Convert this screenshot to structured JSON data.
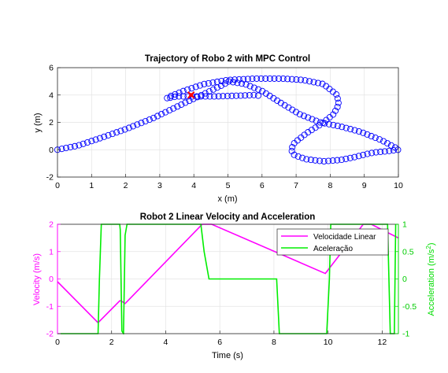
{
  "chart_data": [
    {
      "type": "scatter",
      "title": "Trajectory of Robo 2 with MPC Control",
      "xlabel": "x (m)",
      "ylabel": "y (m)",
      "xlim": [
        0,
        10
      ],
      "ylim": [
        -2,
        6
      ],
      "xticks": [
        0,
        1,
        2,
        3,
        4,
        5,
        6,
        7,
        8,
        9,
        10
      ],
      "yticks": [
        -2,
        0,
        2,
        4,
        6
      ],
      "grid": true,
      "marker": "circle",
      "series_color": "#0000ff",
      "current_marker_color": "#ff0000",
      "current_position": {
        "x": 3.92,
        "y": 4.0
      },
      "trajectory": [
        {
          "x": 0.0,
          "y": 0.0
        },
        {
          "x": 0.6,
          "y": 0.3
        },
        {
          "x": 1.2,
          "y": 0.8
        },
        {
          "x": 2.0,
          "y": 1.5
        },
        {
          "x": 2.8,
          "y": 2.3
        },
        {
          "x": 3.3,
          "y": 2.9
        },
        {
          "x": 3.8,
          "y": 3.5
        },
        {
          "x": 4.4,
          "y": 4.2
        },
        {
          "x": 4.9,
          "y": 4.8
        },
        {
          "x": 5.0,
          "y": 5.0
        },
        {
          "x": 5.5,
          "y": 4.8
        },
        {
          "x": 6.0,
          "y": 4.3
        },
        {
          "x": 6.5,
          "y": 3.5
        },
        {
          "x": 7.1,
          "y": 2.6
        },
        {
          "x": 7.7,
          "y": 2.0
        },
        {
          "x": 8.3,
          "y": 1.7
        },
        {
          "x": 8.9,
          "y": 1.3
        },
        {
          "x": 9.5,
          "y": 0.7
        },
        {
          "x": 9.95,
          "y": 0.1
        },
        {
          "x": 10.0,
          "y": 0.0
        },
        {
          "x": 9.7,
          "y": -0.1
        },
        {
          "x": 9.3,
          "y": -0.2
        },
        {
          "x": 9.1,
          "y": -0.3
        },
        {
          "x": 8.7,
          "y": -0.55
        },
        {
          "x": 8.3,
          "y": -0.75
        },
        {
          "x": 7.8,
          "y": -0.85
        },
        {
          "x": 7.3,
          "y": -0.7
        },
        {
          "x": 6.95,
          "y": -0.4
        },
        {
          "x": 6.85,
          "y": 0.0
        },
        {
          "x": 6.95,
          "y": 0.5
        },
        {
          "x": 7.3,
          "y": 1.2
        },
        {
          "x": 7.75,
          "y": 1.9
        },
        {
          "x": 8.1,
          "y": 2.6
        },
        {
          "x": 8.25,
          "y": 3.3
        },
        {
          "x": 8.2,
          "y": 4.0
        },
        {
          "x": 7.8,
          "y": 4.8
        },
        {
          "x": 7.2,
          "y": 5.1
        },
        {
          "x": 6.6,
          "y": 5.2
        },
        {
          "x": 5.8,
          "y": 5.2
        },
        {
          "x": 5.0,
          "y": 5.1
        },
        {
          "x": 4.3,
          "y": 4.8
        },
        {
          "x": 3.7,
          "y": 4.3
        },
        {
          "x": 3.3,
          "y": 3.9
        },
        {
          "x": 3.2,
          "y": 3.75
        },
        {
          "x": 3.5,
          "y": 3.9
        },
        {
          "x": 4.0,
          "y": 3.9
        },
        {
          "x": 4.6,
          "y": 3.9
        },
        {
          "x": 5.3,
          "y": 3.95
        },
        {
          "x": 5.8,
          "y": 4.0
        },
        {
          "x": 6.0,
          "y": 3.9
        }
      ]
    },
    {
      "type": "line",
      "title": "Robot 2 Linear Velocity and Acceleration",
      "xlabel": "Time (s)",
      "ylabel_left": "Velocity (m/s)",
      "ylabel_right": "Acceleration (m/s²)",
      "ylabel_right_base": "Acceleration (m/s",
      "ylabel_right_exp": "2",
      "ylabel_right_close": ")",
      "xlim": [
        0,
        12.6
      ],
      "ylim_left": [
        -2,
        2
      ],
      "ylim_right": [
        -1,
        1
      ],
      "xticks": [
        0,
        2,
        4,
        6,
        8,
        10,
        12
      ],
      "yticks_left": [
        -2,
        -1,
        0,
        1,
        2
      ],
      "yticks_right": [
        -1,
        -0.5,
        0,
        0.5,
        1
      ],
      "ytick_labels_right": [
        "-1",
        "-0.5",
        "0",
        "0.5",
        "1"
      ],
      "grid": true,
      "legend_position": "top-right",
      "series": [
        {
          "name": "Velocidade Linear",
          "axis": "left",
          "color": "#ff00ff",
          "points": [
            [
              0,
              -0.1
            ],
            [
              1.5,
              -1.6
            ],
            [
              2.3,
              -0.8
            ],
            [
              2.35,
              -0.8
            ],
            [
              2.5,
              -0.9
            ],
            [
              5.35,
              2.0
            ],
            [
              5.7,
              2.0
            ],
            [
              9.9,
              0.2
            ],
            [
              11.3,
              2.0
            ],
            [
              11.6,
              2.0
            ],
            [
              12.6,
              1.5
            ]
          ]
        },
        {
          "name": "Aceleração",
          "axis": "right",
          "color": "#00ee00",
          "points": [
            [
              0,
              -1
            ],
            [
              1.5,
              -1
            ],
            [
              1.55,
              0.0
            ],
            [
              1.62,
              1.0
            ],
            [
              1.64,
              1.0
            ],
            [
              2.3,
              1.0
            ],
            [
              2.32,
              0.9
            ],
            [
              2.38,
              -0.95
            ],
            [
              2.44,
              -1.0
            ],
            [
              2.5,
              0.8
            ],
            [
              2.57,
              1.0
            ],
            [
              5.3,
              1.0
            ],
            [
              5.42,
              0.5
            ],
            [
              5.6,
              0.0
            ],
            [
              8.1,
              0.0
            ],
            [
              8.2,
              -1.0
            ],
            [
              9.95,
              -1.0
            ],
            [
              10.05,
              0.0
            ],
            [
              10.1,
              1.0
            ],
            [
              12.2,
              1.0
            ],
            [
              12.3,
              -1.0
            ],
            [
              12.45,
              -1.0
            ],
            [
              12.5,
              1.0
            ]
          ]
        }
      ]
    }
  ]
}
